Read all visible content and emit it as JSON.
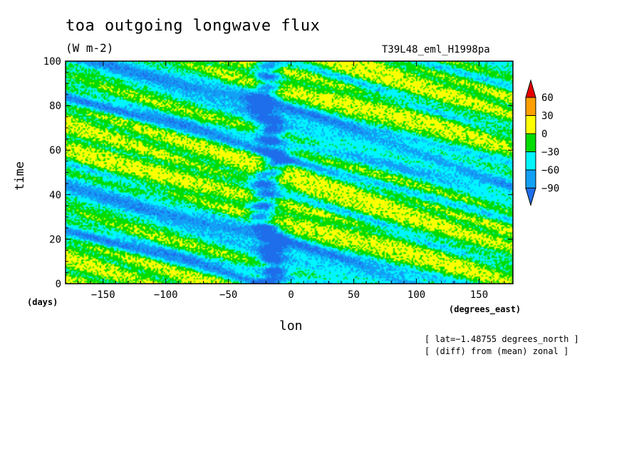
{
  "chart_data": {
    "type": "heatmap",
    "title": "toa outgoing longwave flux",
    "units": "(W m-2)",
    "run_name": "T39L48_eml_H1998pa",
    "xlabel": "lon",
    "x_unit_label": "(degrees_east)",
    "ylabel": "time",
    "y_unit_label": "(days)",
    "xlim": [
      -180,
      177
    ],
    "ylim": [
      0,
      100
    ],
    "x_ticks": [
      -150,
      -100,
      -50,
      0,
      50,
      100,
      150
    ],
    "y_ticks": [
      0,
      20,
      40,
      60,
      80,
      100
    ],
    "x_tick_labels": [
      "−150",
      "−100",
      "−50",
      "0",
      "50",
      "100",
      "150"
    ],
    "y_tick_labels": [
      "0",
      "20",
      "40",
      "60",
      "80",
      "100"
    ],
    "colorbar": {
      "levels": [
        -90,
        -60,
        -30,
        0,
        30,
        60
      ],
      "labels": [
        "−90",
        "−60",
        "−30",
        "0",
        "30",
        "60"
      ],
      "colors": [
        "#1e6eeb",
        "#12a0f5",
        "#00f5ff",
        "#00dc00",
        "#ffff00",
        "#ffa000",
        "#e60000"
      ]
    },
    "annotations": [
      "[ lat=−1.48755 degrees_north ]",
      "[ (diff) from (mean) zonal ]"
    ]
  }
}
